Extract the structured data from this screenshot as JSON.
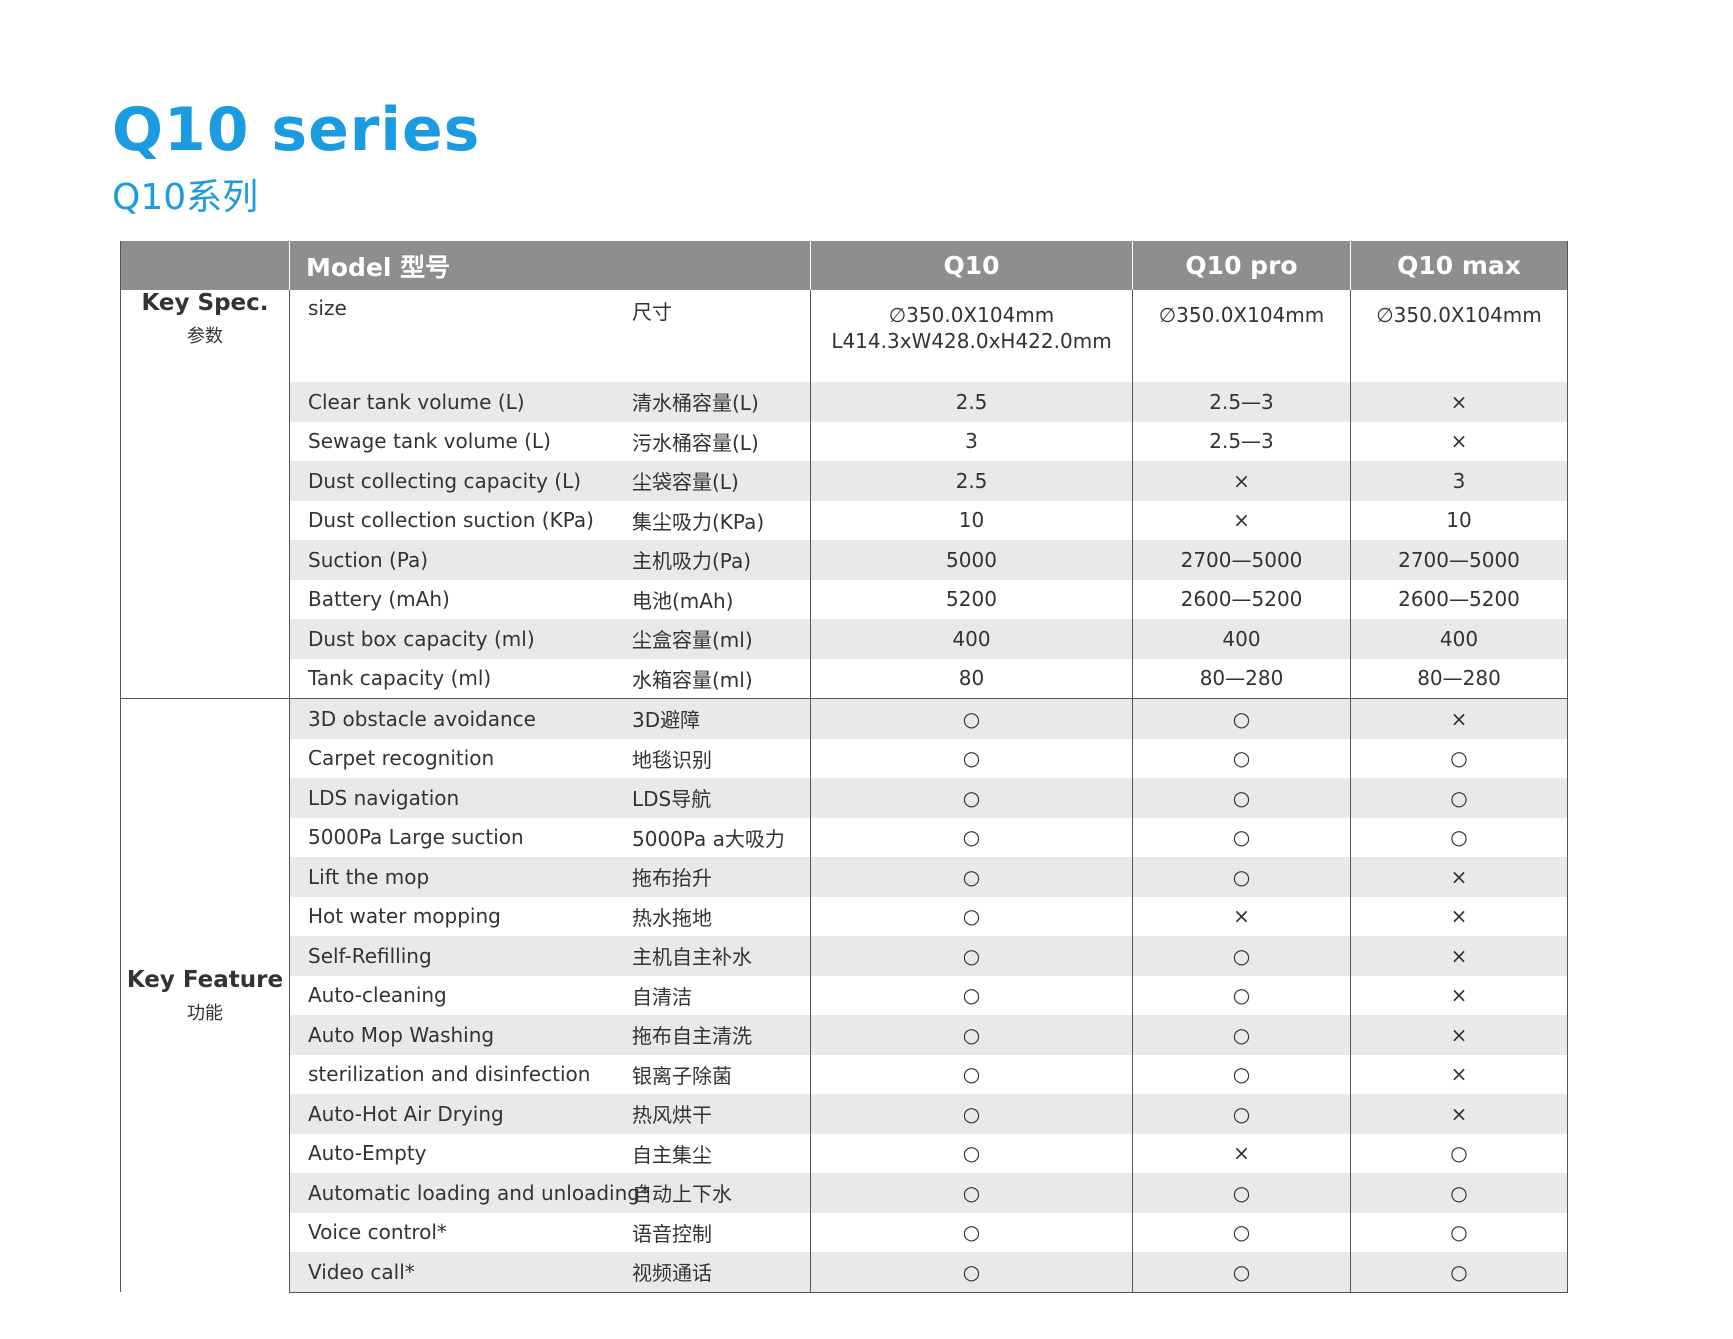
{
  "title": "Q10 series",
  "subtitle": "Q10系列",
  "table": {
    "headers": [
      "",
      "Model 型号",
      "Q10",
      "Q10 pro",
      "Q10 max"
    ],
    "size_row": {
      "en": "size",
      "zh": "尺寸",
      "q10_line1": "∅350.0X104mm",
      "q10_line2": "L414.3xW428.0xH422.0mm",
      "q10pro": "∅350.0X104mm",
      "q10max": "∅350.0X104mm"
    },
    "spec_group": {
      "en": "Key Spec.",
      "zh": "参数",
      "rows": [
        {
          "en": "Clear tank volume (L)",
          "zh": "清水桶容量(L)",
          "q10": "2.5",
          "q10pro": "2.5—3",
          "q10max": "×"
        },
        {
          "en": "Sewage tank volume (L)",
          "zh": "污水桶容量(L)",
          "q10": "3",
          "q10pro": "2.5—3",
          "q10max": "×"
        },
        {
          "en": "Dust collecting capacity (L)",
          "zh": "尘袋容量(L)",
          "q10": "2.5",
          "q10pro": "×",
          "q10max": "3"
        },
        {
          "en": "Dust collection suction (KPa)",
          "zh": "集尘吸力(KPa)",
          "q10": "10",
          "q10pro": "×",
          "q10max": "10"
        },
        {
          "en": "Suction (Pa)",
          "zh": "主机吸力(Pa)",
          "q10": "5000",
          "q10pro": "2700—5000",
          "q10max": "2700—5000"
        },
        {
          "en": "Battery (mAh)",
          "zh": "电池(mAh)",
          "q10": "5200",
          "q10pro": "2600—5200",
          "q10max": "2600—5200"
        },
        {
          "en": "Dust box capacity (ml)",
          "zh": "尘盒容量(ml)",
          "q10": "400",
          "q10pro": "400",
          "q10max": "400"
        },
        {
          "en": "Tank capacity (ml)",
          "zh": "水箱容量(ml)",
          "q10": "80",
          "q10pro": "80—280",
          "q10max": "80—280"
        }
      ]
    },
    "feature_group": {
      "en": "Key Feature",
      "zh": "功能",
      "rows": [
        {
          "en": "3D obstacle avoidance",
          "zh": "3D避障",
          "q10": "○",
          "q10pro": "○",
          "q10max": "×"
        },
        {
          "en": "Carpet recognition",
          "zh": "地毯识别",
          "q10": "○",
          "q10pro": "○",
          "q10max": "○"
        },
        {
          "en": "LDS navigation",
          "zh": "LDS导航",
          "q10": "○",
          "q10pro": "○",
          "q10max": "○"
        },
        {
          "en": "5000Pa Large suction",
          "zh": "5000Pa a大吸力",
          "q10": "○",
          "q10pro": "○",
          "q10max": "○"
        },
        {
          "en": "Lift the mop",
          "zh": "拖布抬升",
          "q10": "○",
          "q10pro": "○",
          "q10max": "×"
        },
        {
          "en": "Hot water mopping",
          "zh": "热水拖地",
          "q10": "○",
          "q10pro": "×",
          "q10max": "×"
        },
        {
          "en": "Self-Refilling",
          "zh": "主机自主补水",
          "q10": "○",
          "q10pro": "○",
          "q10max": "×"
        },
        {
          "en": "Auto-cleaning",
          "zh": "自清洁",
          "q10": "○",
          "q10pro": "○",
          "q10max": "×"
        },
        {
          "en": "Auto Mop Washing",
          "zh": "拖布自主清洗",
          "q10": "○",
          "q10pro": "○",
          "q10max": "×"
        },
        {
          "en": "sterilization and disinfection",
          "zh": "银离子除菌",
          "q10": "○",
          "q10pro": "○",
          "q10max": "×"
        },
        {
          "en": "Auto-Hot Air Drying",
          "zh": "热风烘干",
          "q10": "○",
          "q10pro": "○",
          "q10max": "×"
        },
        {
          "en": "Auto-Empty",
          "zh": "自主集尘",
          "q10": "○",
          "q10pro": "×",
          "q10max": "○"
        },
        {
          "en": "Automatic loading and unloading*",
          "zh": "自动上下水",
          "q10": "○",
          "q10pro": "○",
          "q10max": "○"
        },
        {
          "en": "Voice control*",
          "zh": "语音控制",
          "q10": "○",
          "q10pro": "○",
          "q10max": "○"
        },
        {
          "en": "Video call*",
          "zh": "视频通话",
          "q10": "○",
          "q10pro": "○",
          "q10max": "○"
        }
      ]
    }
  }
}
